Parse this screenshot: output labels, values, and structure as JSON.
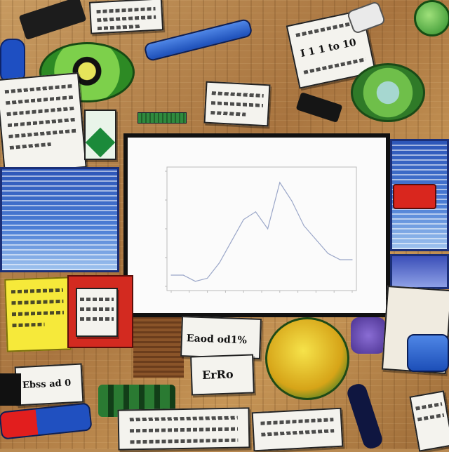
{
  "scene": {
    "note_bottom_left": "Ebss ad 0",
    "note_center_left": "Eaod od1%",
    "note_center_right": "ErRo",
    "note_top_right": "I 1 1 to 10"
  },
  "chart_data": {
    "type": "line",
    "title": "",
    "xlabel": "",
    "ylabel": "",
    "x_tick_labels": [
      "",
      "",
      "",
      "",
      "",
      "",
      "",
      "",
      "",
      "",
      ""
    ],
    "y_tick_labels": [
      "",
      "",
      "",
      "",
      ""
    ],
    "x": [
      0,
      1,
      2,
      3,
      4,
      5,
      6,
      7,
      8,
      9,
      10,
      11,
      12,
      13,
      14,
      15
    ],
    "series": [
      {
        "values": [
          10,
          10,
          6,
          8,
          18,
          32,
          46,
          51,
          40,
          70,
          58,
          42,
          33,
          24,
          20,
          20
        ]
      }
    ],
    "ylim": [
      0,
      80
    ],
    "grid": false,
    "colors": {
      "line": "#9aa6c8",
      "axis": "#bbbbbb",
      "frame": "#111111"
    }
  }
}
